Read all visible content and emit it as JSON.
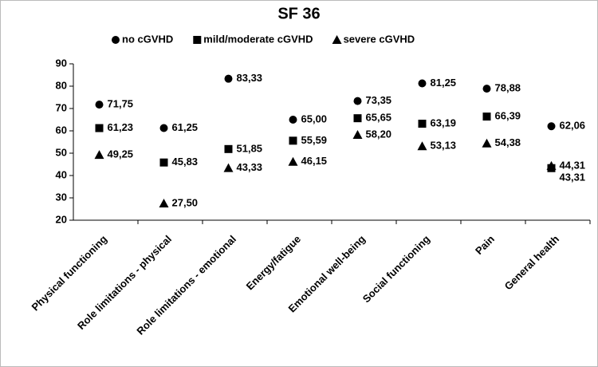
{
  "chart_data": {
    "type": "dot",
    "title": "SF 36",
    "categories": [
      "Physical functioning",
      "Role limitations - physical",
      "Role limitations - emotional",
      "Energy/fatigue",
      "Emotional well-being",
      "Social functioning",
      "Pain",
      "General health"
    ],
    "series": [
      {
        "name": "no cGVHD",
        "color": "#000000",
        "marker": "circle",
        "values": [
          71.75,
          61.25,
          83.33,
          65.0,
          73.35,
          81.25,
          78.88,
          62.06
        ],
        "value_labels": [
          "71,75",
          "61,25",
          "83,33",
          "65,00",
          "73,35",
          "81,25",
          "78,88",
          "62,06"
        ]
      },
      {
        "name": "mild/moderate cGVHD",
        "color": "#000000",
        "marker": "square",
        "values": [
          61.23,
          45.83,
          51.85,
          55.59,
          65.65,
          63.19,
          66.39,
          43.31
        ],
        "value_labels": [
          "61,23",
          "45,83",
          "51,85",
          "55,59",
          "65,65",
          "63,19",
          "66,39",
          "43,31"
        ]
      },
      {
        "name": "severe cGVHD",
        "color": "#000000",
        "marker": "triangle",
        "values": [
          49.25,
          27.5,
          43.33,
          46.15,
          58.2,
          53.13,
          54.38,
          44.31
        ],
        "value_labels": [
          "49,25",
          "27,50",
          "43,33",
          "46,15",
          "58,20",
          "53,13",
          "54,38",
          "44,31"
        ]
      }
    ],
    "ylim": [
      20,
      90
    ],
    "yticks": [
      20,
      30,
      40,
      50,
      60,
      70,
      80,
      90
    ],
    "grid": false,
    "legend": "top"
  }
}
